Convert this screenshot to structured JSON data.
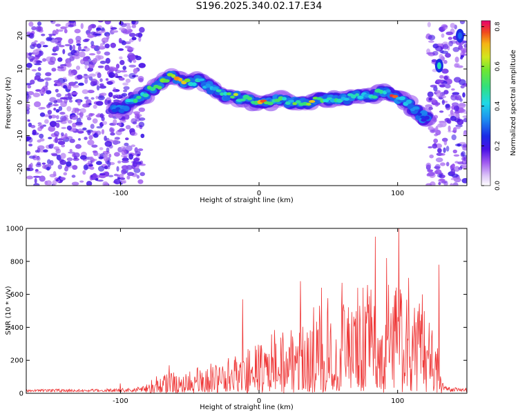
{
  "title": "S196.2025.340.02.17.E34",
  "colors": {
    "snr_line": "#ee3333",
    "spectro_scale": [
      "#ffffff",
      "#cfa8f5",
      "#8a3cf0",
      "#5a18e6",
      "#1b1be6",
      "#1d7cf2",
      "#1fd8e6",
      "#2ee08c",
      "#5ae632",
      "#c8e61e",
      "#f5c814",
      "#f56414",
      "#f01e28",
      "#e6005a"
    ]
  },
  "chart_data": [
    {
      "id": "spectrogram",
      "type": "heatmap",
      "xlabel": "Height of straight line (km)",
      "ylabel": "Frequency (Hz)",
      "xlim": [
        -168,
        150
      ],
      "ylim": [
        -25,
        24.5
      ],
      "xticks": [
        -100,
        0,
        100
      ],
      "yticks": [
        -20,
        -10,
        0,
        10,
        20
      ],
      "xtick_labels": [
        "-100",
        "0",
        "100"
      ],
      "ytick_labels": [
        "-20",
        "-10",
        "0",
        "10",
        "20"
      ],
      "colorbar": {
        "label": "Normalized spectral amplitude",
        "range": [
          0,
          0.83
        ],
        "ticks": [
          0.0,
          0.2,
          0.4,
          0.6,
          0.8
        ],
        "tick_labels": [
          "0.0",
          "0.2",
          "0.4",
          "0.6",
          "0.8"
        ]
      },
      "noise_regions": [
        {
          "x": [
            -168,
            -84
          ],
          "y": [
            -25,
            24.5
          ],
          "level": 0.12
        },
        {
          "x": [
            122,
            150
          ],
          "y": [
            -25,
            24.5
          ],
          "level": 0.12
        }
      ],
      "ridge": {
        "x": [
          -103,
          -98,
          -93,
          -88,
          -83,
          -78,
          -73,
          -68,
          -63,
          -58,
          -53,
          -48,
          -43,
          -38,
          -33,
          -28,
          -23,
          -18,
          -13,
          -8,
          -3,
          2,
          7,
          12,
          17,
          22,
          27,
          32,
          37,
          42,
          47,
          52,
          57,
          62,
          67,
          72,
          77,
          82,
          87,
          92,
          97,
          102,
          107,
          112,
          117,
          120
        ],
        "freq": [
          -2,
          -2,
          0,
          1,
          2,
          4,
          5,
          7,
          8,
          7,
          6,
          6,
          7,
          5,
          4,
          3,
          2,
          2,
          1,
          1,
          0,
          0,
          0,
          1,
          1,
          0,
          0,
          0,
          0,
          1,
          1,
          1,
          1,
          1,
          2,
          2,
          2,
          2,
          3,
          3,
          2,
          1,
          0,
          -2,
          -4,
          -5
        ],
        "amplitude": [
          0.3,
          0.35,
          0.45,
          0.5,
          0.5,
          0.55,
          0.6,
          0.6,
          0.65,
          0.8,
          0.7,
          0.55,
          0.5,
          0.45,
          0.45,
          0.5,
          0.55,
          0.65,
          0.5,
          0.6,
          0.55,
          0.8,
          0.55,
          0.6,
          0.55,
          0.5,
          0.6,
          0.55,
          0.75,
          0.6,
          0.55,
          0.5,
          0.5,
          0.45,
          0.45,
          0.5,
          0.45,
          0.55,
          0.5,
          0.45,
          0.8,
          0.45,
          0.4,
          0.35,
          0.3,
          0.25
        ]
      },
      "extra_blobs": [
        {
          "x": 130,
          "freq": 11,
          "amplitude": 0.45
        },
        {
          "x": 145,
          "freq": 20,
          "amplitude": 0.3
        }
      ]
    },
    {
      "id": "snr",
      "type": "line",
      "xlabel": "Height of straight line (km)",
      "ylabel": "SNR (10 * v/v)",
      "xlim": [
        -168,
        150
      ],
      "ylim": [
        0,
        1000
      ],
      "xticks": [
        -100,
        0,
        100
      ],
      "yticks": [
        0,
        200,
        400,
        600,
        800,
        1000
      ],
      "xtick_labels": [
        "-100",
        "0",
        "100"
      ],
      "ytick_labels": [
        "0",
        "200",
        "400",
        "600",
        "800",
        "1000"
      ],
      "envelope": {
        "x": [
          -168,
          -120,
          -90,
          -75,
          -60,
          -45,
          -30,
          -15,
          0,
          15,
          30,
          45,
          60,
          75,
          90,
          100,
          110,
          125,
          133,
          140,
          150
        ],
        "snr": [
          25,
          25,
          35,
          90,
          130,
          150,
          180,
          230,
          300,
          400,
          480,
          540,
          590,
          620,
          620,
          640,
          560,
          460,
          60,
          40,
          40
        ]
      },
      "peaks": [
        {
          "x": -100,
          "snr": 60
        },
        {
          "x": -65,
          "snr": 170
        },
        {
          "x": -12,
          "snr": 570
        },
        {
          "x": 30,
          "snr": 680
        },
        {
          "x": 45,
          "snr": 640
        },
        {
          "x": 60,
          "snr": 670
        },
        {
          "x": 75,
          "snr": 640
        },
        {
          "x": 84,
          "snr": 950
        },
        {
          "x": 92,
          "snr": 820
        },
        {
          "x": 101,
          "snr": 1000
        },
        {
          "x": 108,
          "snr": 700
        },
        {
          "x": 118,
          "snr": 600
        },
        {
          "x": 130,
          "snr": 780
        }
      ]
    }
  ]
}
